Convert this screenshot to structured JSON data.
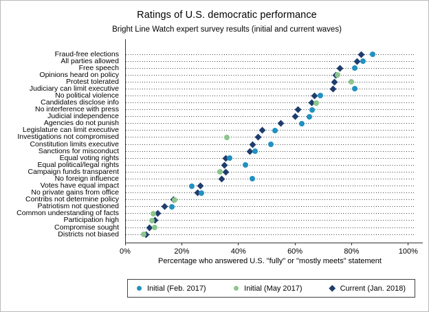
{
  "title": "Ratings of U.S. democratic performance",
  "subtitle": "Bright Line Watch expert survey results (initial and current waves)",
  "chart_data": {
    "type": "scatter",
    "variant": "dot-plot",
    "title": "Ratings of U.S. democratic performance",
    "subtitle": "Bright Line Watch expert survey results (initial and current waves)",
    "xlabel": "Percentage who answered U.S. \"fully\" or \"mostly meets\" statement",
    "xlim": [
      0,
      102
    ],
    "x_tick_values": [
      0,
      20,
      40,
      60,
      80,
      100
    ],
    "x_tick_labels": [
      "0%",
      "20%",
      "40%",
      "60%",
      "80%",
      "100%"
    ],
    "grid": "horizontal-dotted",
    "legend_position": "bottom",
    "colors": {
      "feb": "#2191c0",
      "may": "#8cc68c",
      "current": "#1e3d6e",
      "axis": "#303030"
    },
    "legend": [
      {
        "key": "feb",
        "marker": "circle",
        "label": "Initial (Feb. 2017)"
      },
      {
        "key": "may",
        "marker": "circle",
        "label": "Initial (May 2017)"
      },
      {
        "key": "current",
        "marker": "diamond",
        "label": "Current (Jan. 2018)"
      }
    ],
    "rows": [
      {
        "label": "Fraud-free elections",
        "initial_wave": "feb",
        "initial": 87.5,
        "current": 83.5
      },
      {
        "label": "All parties allowed",
        "initial_wave": "feb",
        "initial": 84,
        "current": 82
      },
      {
        "label": "Free speech",
        "initial_wave": "feb",
        "initial": 81,
        "current": 76
      },
      {
        "label": "Opinions heard on policy",
        "initial_wave": "may",
        "initial": 75,
        "current": 74.5
      },
      {
        "label": "Protest tolerated",
        "initial_wave": "may",
        "initial": 80,
        "current": 74
      },
      {
        "label": "Judiciary can limit executive",
        "initial_wave": "feb",
        "initial": 81,
        "current": 73.5
      },
      {
        "label": "No political violence",
        "initial_wave": "feb",
        "initial": 69,
        "current": 67
      },
      {
        "label": "Candidates disclose info",
        "initial_wave": "may",
        "initial": 67.5,
        "current": 66
      },
      {
        "label": "No interference with press",
        "initial_wave": "feb",
        "initial": 66,
        "current": 61
      },
      {
        "label": "Judicial independence",
        "initial_wave": "feb",
        "initial": 65,
        "current": 60
      },
      {
        "label": "Agencies do not punish",
        "initial_wave": "feb",
        "initial": 62.5,
        "current": 55
      },
      {
        "label": "Legislature can limit executive",
        "initial_wave": "feb",
        "initial": 53,
        "current": 48.5
      },
      {
        "label": "Investigations not compromised",
        "initial_wave": "may",
        "initial": 36,
        "current": 47
      },
      {
        "label": "Constitution limits executive",
        "initial_wave": "feb",
        "initial": 51.5,
        "current": 45
      },
      {
        "label": "Sanctions for misconduct",
        "initial_wave": "feb",
        "initial": 46,
        "current": 44
      },
      {
        "label": "Equal voting rights",
        "initial_wave": "feb",
        "initial": 37,
        "current": 35.5
      },
      {
        "label": "Equal political/legal rights",
        "initial_wave": "feb",
        "initial": 42.5,
        "current": 35
      },
      {
        "label": "Campaign funds transparent",
        "initial_wave": "may",
        "initial": 33.5,
        "current": 35.5
      },
      {
        "label": "No foreign influence",
        "initial_wave": "feb",
        "initial": 45,
        "current": 34
      },
      {
        "label": "Votes have equal impact",
        "initial_wave": "feb",
        "initial": 23.5,
        "current": 26.5
      },
      {
        "label": "No private gains from office",
        "initial_wave": "feb",
        "initial": 27,
        "current": 25.5
      },
      {
        "label": "Contribs not determine policy",
        "initial_wave": "may",
        "initial": 17.5,
        "current": 17
      },
      {
        "label": "Patriotism not questioned",
        "initial_wave": "feb",
        "initial": 16.5,
        "current": 14
      },
      {
        "label": "Common understanding of facts",
        "initial_wave": "may",
        "initial": 10,
        "current": 11.5
      },
      {
        "label": "Participation high",
        "initial_wave": "may",
        "initial": 9.5,
        "current": 10.5
      },
      {
        "label": "Compromise sought",
        "initial_wave": "may",
        "initial": 10.5,
        "current": 8.5
      },
      {
        "label": "Districts not biased",
        "initial_wave": "may",
        "initial": 6.5,
        "current": 7.5
      }
    ]
  }
}
